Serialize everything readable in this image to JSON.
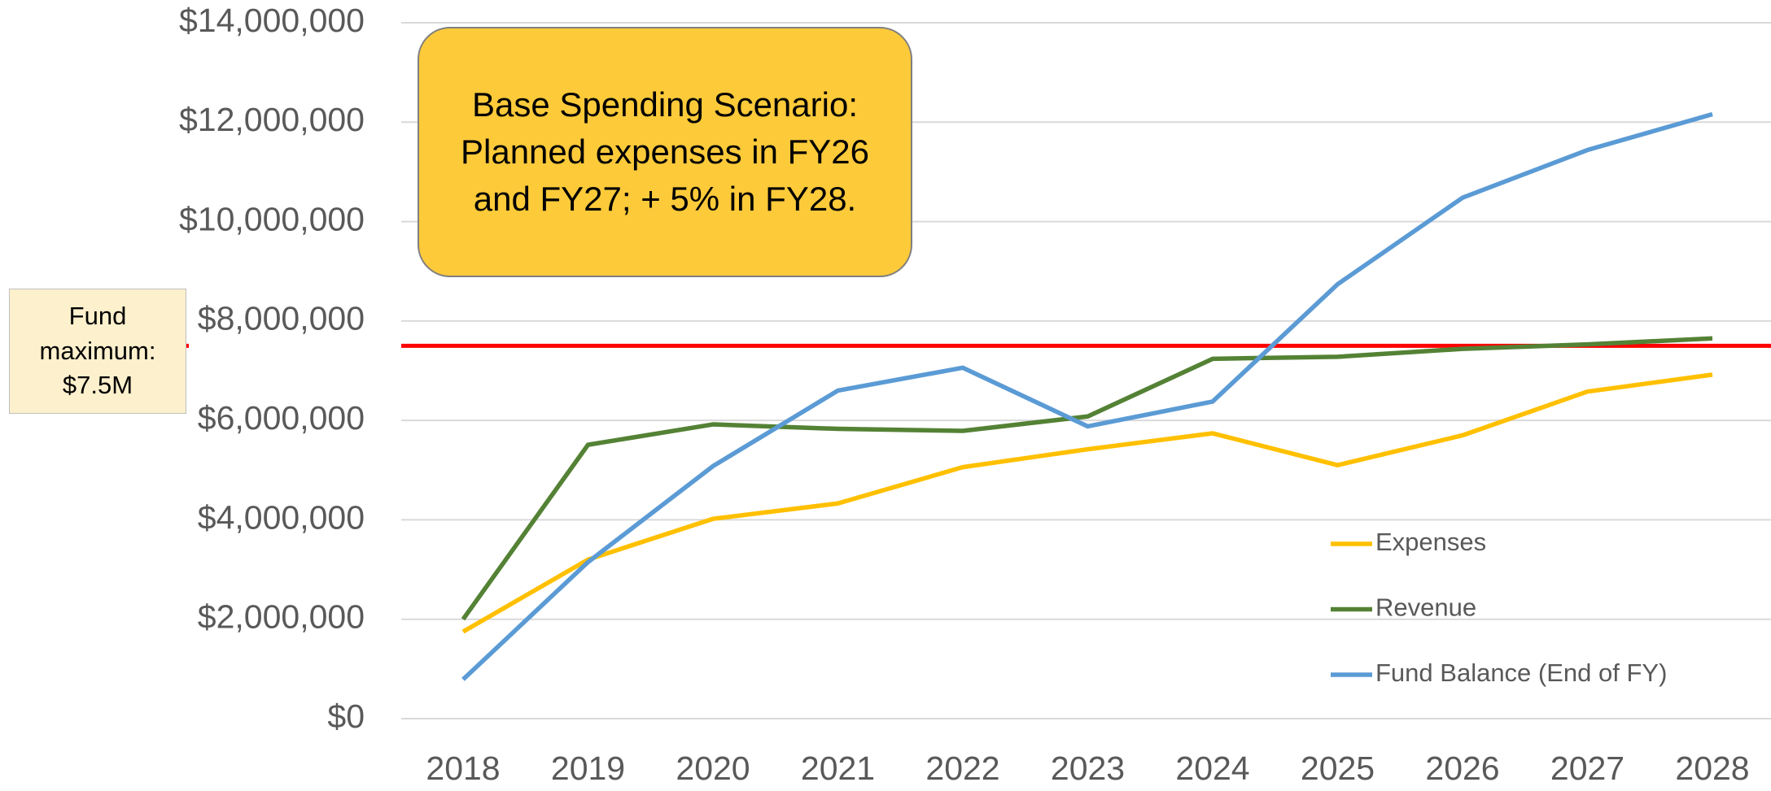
{
  "chart_data": {
    "type": "line",
    "annotation": "Base Spending Scenario: Planned expenses in FY26 and FY27; + 5% in FY28.",
    "threshold": {
      "label": "Fund maximum: $7.5M",
      "value": 7500000,
      "color": "#ff0000"
    },
    "x": [
      2018,
      2019,
      2020,
      2021,
      2022,
      2023,
      2024,
      2025,
      2026,
      2027,
      2028
    ],
    "xlim": [
      2018,
      2028
    ],
    "xticks": [
      2018,
      2019,
      2020,
      2021,
      2022,
      2023,
      2024,
      2025,
      2026,
      2027,
      2028
    ],
    "ylim": [
      0,
      14000000
    ],
    "yticks": [
      {
        "value": 0,
        "label": "$0"
      },
      {
        "value": 2000000,
        "label": "$2,000,000"
      },
      {
        "value": 4000000,
        "label": "$4,000,000"
      },
      {
        "value": 6000000,
        "label": "$6,000,000"
      },
      {
        "value": 8000000,
        "label": "$8,000,000"
      },
      {
        "value": 10000000,
        "label": "$10,000,000"
      },
      {
        "value": 12000000,
        "label": "$12,000,000"
      },
      {
        "value": 14000000,
        "label": "$14,000,000"
      }
    ],
    "grid": true,
    "series": [
      {
        "name": "Expenses",
        "color": "#ffc000",
        "values": [
          1750000,
          3200000,
          4020000,
          4330000,
          5060000,
          5420000,
          5740000,
          5100000,
          5700000,
          6580000,
          6920000
        ]
      },
      {
        "name": "Revenue",
        "color": "#548235",
        "values": [
          2000000,
          5510000,
          5920000,
          5830000,
          5790000,
          6080000,
          7240000,
          7280000,
          7440000,
          7530000,
          7650000
        ]
      },
      {
        "name": "Fund Balance (End of FY)",
        "color": "#5b9bd5",
        "values": [
          790000,
          3150000,
          5080000,
          6600000,
          7060000,
          5880000,
          6380000,
          8740000,
          10480000,
          11440000,
          12160000
        ]
      }
    ]
  }
}
